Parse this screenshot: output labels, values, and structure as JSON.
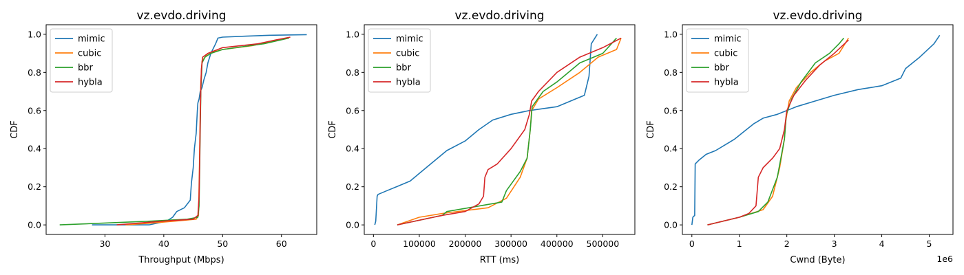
{
  "chart_data": [
    {
      "type": "line",
      "title": "vz.evdo.driving",
      "xlabel": "Throughput (Mbps)",
      "ylabel": "CDF",
      "xlim": [
        20,
        66
      ],
      "ylim": [
        -0.05,
        1.05
      ],
      "xticks": [
        30,
        40,
        50,
        60
      ],
      "xtick_labels": [
        "30",
        "40",
        "50",
        "60"
      ],
      "yticks": [
        0.0,
        0.2,
        0.4,
        0.6,
        0.8,
        1.0
      ],
      "ytick_labels": [
        "0.0",
        "0.2",
        "0.4",
        "0.6",
        "0.8",
        "1.0"
      ],
      "grid": false,
      "legend_position": "top-left",
      "series": [
        {
          "name": "mimic",
          "color": "#1f77b4",
          "points": [
            [
              27.8,
              0.0
            ],
            [
              37.5,
              0.0
            ],
            [
              40.5,
              0.02
            ],
            [
              41.5,
              0.04
            ],
            [
              42.2,
              0.07
            ],
            [
              43.5,
              0.09
            ],
            [
              44.5,
              0.13
            ],
            [
              44.7,
              0.22
            ],
            [
              45.0,
              0.3
            ],
            [
              45.2,
              0.4
            ],
            [
              45.5,
              0.48
            ],
            [
              45.7,
              0.6
            ],
            [
              45.8,
              0.64
            ],
            [
              46.0,
              0.66
            ],
            [
              46.2,
              0.7
            ],
            [
              46.5,
              0.72
            ],
            [
              46.8,
              0.76
            ],
            [
              47.2,
              0.8
            ],
            [
              47.5,
              0.85
            ],
            [
              48.0,
              0.9
            ],
            [
              48.8,
              0.95
            ],
            [
              49.2,
              0.98
            ],
            [
              50.0,
              0.985
            ],
            [
              54.0,
              0.99
            ],
            [
              58.0,
              0.995
            ],
            [
              64.3,
              0.998
            ]
          ]
        },
        {
          "name": "cubic",
          "color": "#ff7f0e",
          "points": [
            [
              33.5,
              0.0
            ],
            [
              38.0,
              0.01
            ],
            [
              42.0,
              0.02
            ],
            [
              45.5,
              0.03
            ],
            [
              45.9,
              0.05
            ],
            [
              46.0,
              0.2
            ],
            [
              46.1,
              0.4
            ],
            [
              46.2,
              0.6
            ],
            [
              46.3,
              0.75
            ],
            [
              46.5,
              0.86
            ],
            [
              47.5,
              0.9
            ],
            [
              50.0,
              0.92
            ],
            [
              55.0,
              0.94
            ],
            [
              58.0,
              0.96
            ],
            [
              61.0,
              0.98
            ]
          ]
        },
        {
          "name": "bbr",
          "color": "#2ca02c",
          "points": [
            [
              22.3,
              0.0
            ],
            [
              30.0,
              0.01
            ],
            [
              38.0,
              0.02
            ],
            [
              44.0,
              0.03
            ],
            [
              45.8,
              0.04
            ],
            [
              46.0,
              0.1
            ],
            [
              46.1,
              0.3
            ],
            [
              46.2,
              0.5
            ],
            [
              46.3,
              0.7
            ],
            [
              46.5,
              0.85
            ],
            [
              47.0,
              0.88
            ],
            [
              48.0,
              0.9
            ],
            [
              50.0,
              0.92
            ],
            [
              57.0,
              0.95
            ],
            [
              61.3,
              0.98
            ]
          ]
        },
        {
          "name": "hybla",
          "color": "#d62728",
          "points": [
            [
              32.0,
              0.0
            ],
            [
              40.0,
              0.02
            ],
            [
              45.0,
              0.03
            ],
            [
              45.8,
              0.05
            ],
            [
              46.0,
              0.15
            ],
            [
              46.1,
              0.35
            ],
            [
              46.2,
              0.55
            ],
            [
              46.3,
              0.72
            ],
            [
              46.4,
              0.82
            ],
            [
              46.6,
              0.88
            ],
            [
              47.5,
              0.9
            ],
            [
              50.0,
              0.93
            ],
            [
              56.0,
              0.95
            ],
            [
              59.0,
              0.97
            ],
            [
              61.5,
              0.985
            ]
          ]
        }
      ]
    },
    {
      "type": "line",
      "title": "vz.evdo.driving",
      "xlabel": "RTT (ms)",
      "ylabel": "CDF",
      "xlim": [
        -20000,
        570000
      ],
      "ylim": [
        -0.05,
        1.05
      ],
      "xticks": [
        0,
        100000,
        200000,
        300000,
        400000,
        500000
      ],
      "xtick_labels": [
        "0",
        "100000",
        "200000",
        "300000",
        "400000",
        "500000"
      ],
      "yticks": [
        0.0,
        0.2,
        0.4,
        0.6,
        0.8,
        1.0
      ],
      "ytick_labels": [
        "0.0",
        "0.2",
        "0.4",
        "0.6",
        "0.8",
        "1.0"
      ],
      "grid": false,
      "legend_position": "top-left",
      "series": [
        {
          "name": "mimic",
          "color": "#1f77b4",
          "points": [
            [
              3000,
              0.0
            ],
            [
              5000,
              0.02
            ],
            [
              8000,
              0.15
            ],
            [
              10000,
              0.16
            ],
            [
              30000,
              0.18
            ],
            [
              50000,
              0.2
            ],
            [
              80000,
              0.23
            ],
            [
              100000,
              0.27
            ],
            [
              130000,
              0.33
            ],
            [
              160000,
              0.39
            ],
            [
              200000,
              0.44
            ],
            [
              230000,
              0.5
            ],
            [
              260000,
              0.55
            ],
            [
              300000,
              0.58
            ],
            [
              340000,
              0.6
            ],
            [
              400000,
              0.62
            ],
            [
              440000,
              0.66
            ],
            [
              460000,
              0.68
            ],
            [
              470000,
              0.78
            ],
            [
              475000,
              0.95
            ],
            [
              488000,
              1.0
            ]
          ]
        },
        {
          "name": "cubic",
          "color": "#ff7f0e",
          "points": [
            [
              52000,
              0.0
            ],
            [
              100000,
              0.04
            ],
            [
              150000,
              0.06
            ],
            [
              250000,
              0.09
            ],
            [
              290000,
              0.14
            ],
            [
              320000,
              0.25
            ],
            [
              335000,
              0.35
            ],
            [
              342000,
              0.5
            ],
            [
              345000,
              0.6
            ],
            [
              360000,
              0.66
            ],
            [
              400000,
              0.72
            ],
            [
              450000,
              0.8
            ],
            [
              490000,
              0.88
            ],
            [
              530000,
              0.92
            ],
            [
              540000,
              0.98
            ]
          ]
        },
        {
          "name": "bbr",
          "color": "#2ca02c",
          "points": [
            [
              52000,
              0.0
            ],
            [
              150000,
              0.05
            ],
            [
              160000,
              0.07
            ],
            [
              280000,
              0.12
            ],
            [
              290000,
              0.18
            ],
            [
              320000,
              0.28
            ],
            [
              335000,
              0.35
            ],
            [
              342000,
              0.5
            ],
            [
              346000,
              0.62
            ],
            [
              370000,
              0.7
            ],
            [
              400000,
              0.75
            ],
            [
              450000,
              0.85
            ],
            [
              500000,
              0.9
            ],
            [
              530000,
              0.98
            ]
          ]
        },
        {
          "name": "hybla",
          "color": "#d62728",
          "points": [
            [
              52000,
              0.0
            ],
            [
              150000,
              0.05
            ],
            [
              200000,
              0.07
            ],
            [
              230000,
              0.11
            ],
            [
              240000,
              0.15
            ],
            [
              243000,
              0.25
            ],
            [
              250000,
              0.29
            ],
            [
              270000,
              0.32
            ],
            [
              300000,
              0.4
            ],
            [
              330000,
              0.5
            ],
            [
              340000,
              0.58
            ],
            [
              345000,
              0.65
            ],
            [
              360000,
              0.7
            ],
            [
              400000,
              0.8
            ],
            [
              450000,
              0.88
            ],
            [
              500000,
              0.93
            ],
            [
              540000,
              0.98
            ]
          ]
        }
      ]
    },
    {
      "type": "line",
      "title": "vz.evdo.driving",
      "xlabel": "Cwnd (Byte)",
      "ylabel": "CDF",
      "offset_text": "1e6",
      "xlim": [
        -200000,
        5500000
      ],
      "ylim": [
        -0.05,
        1.05
      ],
      "xticks": [
        0,
        1000000,
        2000000,
        3000000,
        4000000,
        5000000
      ],
      "xtick_labels": [
        "0",
        "1",
        "2",
        "3",
        "4",
        "5"
      ],
      "yticks": [
        0.0,
        0.2,
        0.4,
        0.6,
        0.8,
        1.0
      ],
      "ytick_labels": [
        "0.0",
        "0.2",
        "0.4",
        "0.6",
        "0.8",
        "1.0"
      ],
      "grid": false,
      "legend_position": "top-left",
      "series": [
        {
          "name": "mimic",
          "color": "#1f77b4",
          "points": [
            [
              0,
              0.0
            ],
            [
              20000,
              0.04
            ],
            [
              60000,
              0.05
            ],
            [
              70000,
              0.32
            ],
            [
              150000,
              0.34
            ],
            [
              300000,
              0.37
            ],
            [
              500000,
              0.39
            ],
            [
              700000,
              0.42
            ],
            [
              900000,
              0.45
            ],
            [
              1100000,
              0.49
            ],
            [
              1300000,
              0.53
            ],
            [
              1500000,
              0.56
            ],
            [
              1800000,
              0.58
            ],
            [
              2000000,
              0.6
            ],
            [
              2200000,
              0.62
            ],
            [
              2600000,
              0.65
            ],
            [
              3000000,
              0.68
            ],
            [
              3500000,
              0.71
            ],
            [
              4000000,
              0.73
            ],
            [
              4400000,
              0.77
            ],
            [
              4500000,
              0.82
            ],
            [
              4800000,
              0.88
            ],
            [
              5100000,
              0.95
            ],
            [
              5220000,
              0.995
            ]
          ]
        },
        {
          "name": "cubic",
          "color": "#ff7f0e",
          "points": [
            [
              330000,
              0.0
            ],
            [
              1000000,
              0.04
            ],
            [
              1500000,
              0.08
            ],
            [
              1700000,
              0.15
            ],
            [
              1850000,
              0.3
            ],
            [
              1950000,
              0.45
            ],
            [
              1980000,
              0.55
            ],
            [
              2050000,
              0.65
            ],
            [
              2200000,
              0.72
            ],
            [
              2500000,
              0.8
            ],
            [
              2800000,
              0.86
            ],
            [
              3100000,
              0.9
            ],
            [
              3300000,
              0.98
            ]
          ]
        },
        {
          "name": "bbr",
          "color": "#2ca02c",
          "points": [
            [
              330000,
              0.0
            ],
            [
              1000000,
              0.04
            ],
            [
              1400000,
              0.07
            ],
            [
              1600000,
              0.12
            ],
            [
              1800000,
              0.25
            ],
            [
              1950000,
              0.45
            ],
            [
              1990000,
              0.58
            ],
            [
              2100000,
              0.66
            ],
            [
              2300000,
              0.75
            ],
            [
              2600000,
              0.85
            ],
            [
              2900000,
              0.9
            ],
            [
              3100000,
              0.95
            ],
            [
              3200000,
              0.98
            ]
          ]
        },
        {
          "name": "hybla",
          "color": "#d62728",
          "points": [
            [
              330000,
              0.0
            ],
            [
              1000000,
              0.04
            ],
            [
              1200000,
              0.06
            ],
            [
              1350000,
              0.1
            ],
            [
              1400000,
              0.25
            ],
            [
              1500000,
              0.3
            ],
            [
              1700000,
              0.35
            ],
            [
              1850000,
              0.4
            ],
            [
              1950000,
              0.5
            ],
            [
              2000000,
              0.6
            ],
            [
              2150000,
              0.68
            ],
            [
              2400000,
              0.76
            ],
            [
              2700000,
              0.84
            ],
            [
              3000000,
              0.9
            ],
            [
              3300000,
              0.97
            ]
          ]
        }
      ]
    }
  ]
}
